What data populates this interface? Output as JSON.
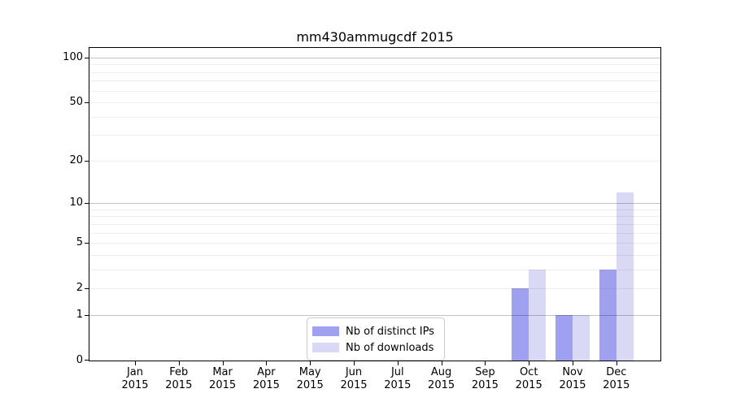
{
  "chart_data": {
    "type": "bar",
    "title": "mm430ammugcdf 2015",
    "categories": [
      "Jan",
      "Feb",
      "Mar",
      "Apr",
      "May",
      "Jun",
      "Jul",
      "Aug",
      "Sep",
      "Oct",
      "Nov",
      "Dec"
    ],
    "year": "2015",
    "series": [
      {
        "name": "Nb of distinct IPs",
        "color": "#a0a0f0",
        "values": [
          0,
          0,
          0,
          0,
          0,
          0,
          0,
          0,
          0,
          2,
          1,
          3
        ]
      },
      {
        "name": "Nb of downloads",
        "color": "#d9d9f6",
        "values": [
          0,
          0,
          0,
          0,
          0,
          0,
          0,
          0,
          0,
          3,
          1,
          12
        ]
      }
    ],
    "yscale": "log1p",
    "ylim": [
      0,
      116
    ],
    "yticks": [
      0,
      1,
      2,
      5,
      10,
      20,
      50,
      100
    ],
    "grid": {
      "on": true,
      "major": [
        1,
        10,
        100
      ],
      "minor": [
        2,
        3,
        4,
        5,
        6,
        7,
        8,
        9,
        20,
        30,
        40,
        50,
        60,
        70,
        80,
        90
      ]
    },
    "legend": {
      "position": "bottom-center"
    }
  }
}
